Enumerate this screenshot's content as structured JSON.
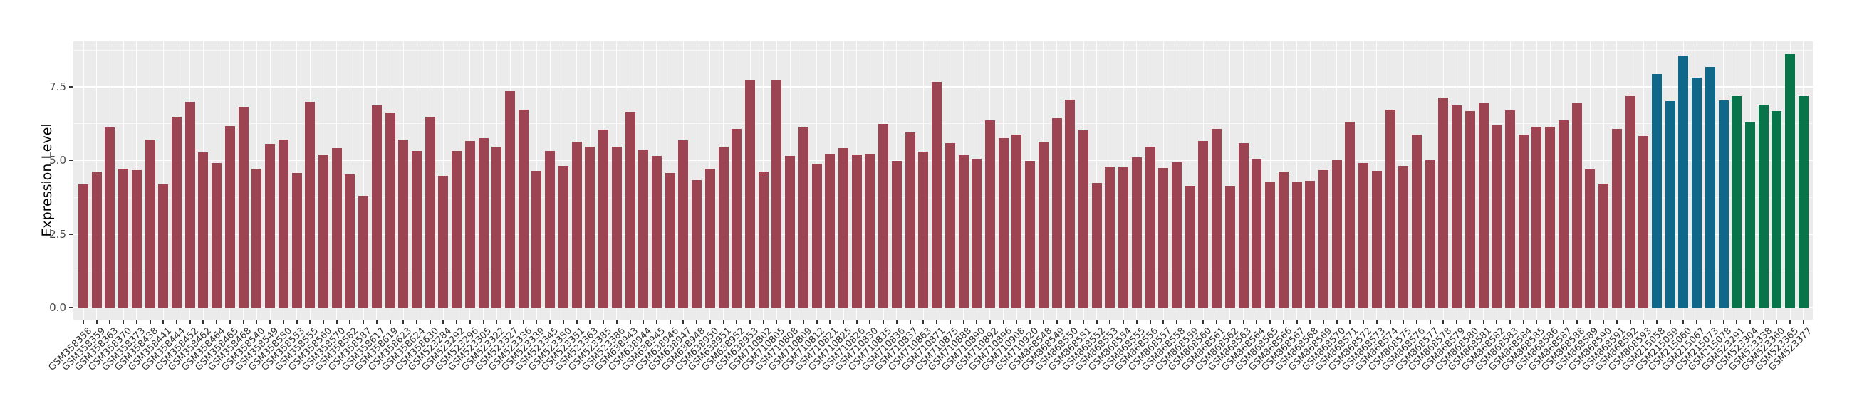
{
  "chart_data": {
    "type": "bar",
    "title": "",
    "xlabel": "",
    "ylabel": "Expression Level",
    "ylim": [
      0,
      9.0
    ],
    "yticks": [
      0.0,
      2.5,
      5.0,
      7.5
    ],
    "ytick_labels": [
      "0.0",
      "2.5",
      "5.0",
      "7.5"
    ],
    "grid": "on",
    "legend_position": "none",
    "group_colors": [
      "#9C4451",
      "#0F678A",
      "#077449"
    ],
    "group_names": [
      "maroon-group",
      "teal-group",
      "green-group"
    ],
    "bars": [
      [
        "GSM358358",
        4.18,
        0
      ],
      [
        "GSM358359",
        4.62,
        0
      ],
      [
        "GSM358363",
        6.11,
        0
      ],
      [
        "GSM358370",
        4.72,
        0
      ],
      [
        "GSM358373",
        4.66,
        0
      ],
      [
        "GSM358438",
        5.7,
        0
      ],
      [
        "GSM358441",
        4.18,
        0
      ],
      [
        "GSM358444",
        6.49,
        0
      ],
      [
        "GSM358452",
        6.99,
        0
      ],
      [
        "GSM358462",
        5.27,
        0
      ],
      [
        "GSM358464",
        4.91,
        0
      ],
      [
        "GSM358465",
        6.18,
        0
      ],
      [
        "GSM358468",
        6.83,
        0
      ],
      [
        "GSM358540",
        4.72,
        0
      ],
      [
        "GSM358549",
        5.56,
        0
      ],
      [
        "GSM358550",
        5.7,
        0
      ],
      [
        "GSM358553",
        4.57,
        0
      ],
      [
        "GSM358555",
        6.99,
        0
      ],
      [
        "GSM358560",
        5.2,
        0
      ],
      [
        "GSM358570",
        5.43,
        0
      ],
      [
        "GSM358582",
        4.52,
        0
      ],
      [
        "GSM358587",
        3.8,
        0
      ],
      [
        "GSM358617",
        6.88,
        0
      ],
      [
        "GSM358619",
        6.63,
        0
      ],
      [
        "GSM358623",
        5.7,
        0
      ],
      [
        "GSM358624",
        5.32,
        0
      ],
      [
        "GSM358630",
        6.49,
        0
      ],
      [
        "GSM523284",
        4.48,
        0
      ],
      [
        "GSM523292",
        5.32,
        0
      ],
      [
        "GSM523296",
        5.65,
        0
      ],
      [
        "GSM523305",
        5.75,
        0
      ],
      [
        "GSM523322",
        5.48,
        0
      ],
      [
        "GSM523327",
        7.35,
        0
      ],
      [
        "GSM523336",
        6.73,
        0
      ],
      [
        "GSM523339",
        4.65,
        0
      ],
      [
        "GSM523345",
        5.32,
        0
      ],
      [
        "GSM523350",
        4.81,
        0
      ],
      [
        "GSM523351",
        5.63,
        0
      ],
      [
        "GSM523363",
        5.48,
        0
      ],
      [
        "GSM523385",
        6.06,
        0
      ],
      [
        "GSM523386",
        5.46,
        0
      ],
      [
        "GSM638943",
        6.66,
        0
      ],
      [
        "GSM638944",
        5.34,
        0
      ],
      [
        "GSM638945",
        5.15,
        0
      ],
      [
        "GSM638946",
        4.57,
        0
      ],
      [
        "GSM638947",
        5.68,
        0
      ],
      [
        "GSM638948",
        4.34,
        0
      ],
      [
        "GSM638950",
        4.72,
        0
      ],
      [
        "GSM638951",
        5.47,
        0
      ],
      [
        "GSM638952",
        6.08,
        0
      ],
      [
        "GSM638953",
        7.74,
        0
      ],
      [
        "GSM710802",
        4.62,
        0
      ],
      [
        "GSM710805",
        7.74,
        0
      ],
      [
        "GSM710808",
        5.15,
        0
      ],
      [
        "GSM710809",
        6.14,
        0
      ],
      [
        "GSM710812",
        4.89,
        0
      ],
      [
        "GSM710821",
        5.22,
        0
      ],
      [
        "GSM710825",
        5.43,
        0
      ],
      [
        "GSM710826",
        5.2,
        0
      ],
      [
        "GSM710830",
        5.22,
        0
      ],
      [
        "GSM710835",
        6.25,
        0
      ],
      [
        "GSM710836",
        4.98,
        0
      ],
      [
        "GSM710837",
        5.96,
        0
      ],
      [
        "GSM710863",
        5.29,
        0
      ],
      [
        "GSM710871",
        7.68,
        0
      ],
      [
        "GSM710875",
        5.58,
        0
      ],
      [
        "GSM710888",
        5.17,
        0
      ],
      [
        "GSM710890",
        5.05,
        0
      ],
      [
        "GSM710892",
        6.37,
        0
      ],
      [
        "GSM710896",
        5.75,
        0
      ],
      [
        "GSM710908",
        5.89,
        0
      ],
      [
        "GSM710920",
        4.98,
        0
      ],
      [
        "GSM868548",
        5.63,
        0
      ],
      [
        "GSM868549",
        6.44,
        0
      ],
      [
        "GSM868550",
        7.07,
        0
      ],
      [
        "GSM868551",
        6.03,
        0
      ],
      [
        "GSM868552",
        4.24,
        0
      ],
      [
        "GSM868553",
        4.79,
        0
      ],
      [
        "GSM868554",
        4.79,
        0
      ],
      [
        "GSM868555",
        5.1,
        0
      ],
      [
        "GSM868556",
        5.46,
        0
      ],
      [
        "GSM868557",
        4.74,
        0
      ],
      [
        "GSM868558",
        4.93,
        0
      ],
      [
        "GSM868559",
        4.14,
        0
      ],
      [
        "GSM868560",
        5.65,
        0
      ],
      [
        "GSM868561",
        6.08,
        0
      ],
      [
        "GSM868562",
        4.14,
        0
      ],
      [
        "GSM868563",
        5.6,
        0
      ],
      [
        "GSM868564",
        5.05,
        0
      ],
      [
        "GSM868565",
        4.26,
        0
      ],
      [
        "GSM868566",
        4.62,
        0
      ],
      [
        "GSM868567",
        4.26,
        0
      ],
      [
        "GSM868568",
        4.31,
        0
      ],
      [
        "GSM868569",
        4.67,
        0
      ],
      [
        "GSM868570",
        5.03,
        0
      ],
      [
        "GSM868571",
        6.32,
        0
      ],
      [
        "GSM868572",
        4.91,
        0
      ],
      [
        "GSM868573",
        4.65,
        0
      ],
      [
        "GSM868574",
        6.73,
        0
      ],
      [
        "GSM868575",
        4.81,
        0
      ],
      [
        "GSM868576",
        5.89,
        0
      ],
      [
        "GSM868577",
        5.0,
        0
      ],
      [
        "GSM868578",
        7.14,
        0
      ],
      [
        "GSM868579",
        6.88,
        0
      ],
      [
        "GSM868580",
        6.68,
        0
      ],
      [
        "GSM868581",
        6.97,
        0
      ],
      [
        "GSM868582",
        6.2,
        0
      ],
      [
        "GSM868583",
        6.7,
        0
      ],
      [
        "GSM868584",
        5.89,
        0
      ],
      [
        "GSM868585",
        6.15,
        0
      ],
      [
        "GSM868586",
        6.15,
        0
      ],
      [
        "GSM868587",
        6.37,
        0
      ],
      [
        "GSM868588",
        6.97,
        0
      ],
      [
        "GSM868589",
        4.69,
        0
      ],
      [
        "GSM868590",
        4.21,
        0
      ],
      [
        "GSM868591",
        6.08,
        0
      ],
      [
        "GSM868592",
        7.18,
        0
      ],
      [
        "GSM868593",
        5.84,
        0
      ],
      [
        "GSM215058",
        7.93,
        1
      ],
      [
        "GSM215059",
        7.02,
        1
      ],
      [
        "GSM215060",
        8.56,
        1
      ],
      [
        "GSM215067",
        7.81,
        1
      ],
      [
        "GSM215073",
        8.19,
        1
      ],
      [
        "GSM215078",
        7.04,
        1
      ],
      [
        "GSM523291",
        7.18,
        2
      ],
      [
        "GSM523304",
        6.28,
        2
      ],
      [
        "GSM523338",
        6.9,
        2
      ],
      [
        "GSM523360",
        6.68,
        2
      ],
      [
        "GSM523365",
        8.61,
        2
      ],
      [
        "GSM523377",
        7.18,
        2
      ]
    ]
  },
  "style": {
    "panel_background": "#EBEBEB",
    "grid_color": "#FFFFFF",
    "axis_tick_color": "#333333",
    "y_tick_text_color": "#4D4D4D",
    "x_tick_text_color": "#303030",
    "axis_title_color": "#000000"
  }
}
